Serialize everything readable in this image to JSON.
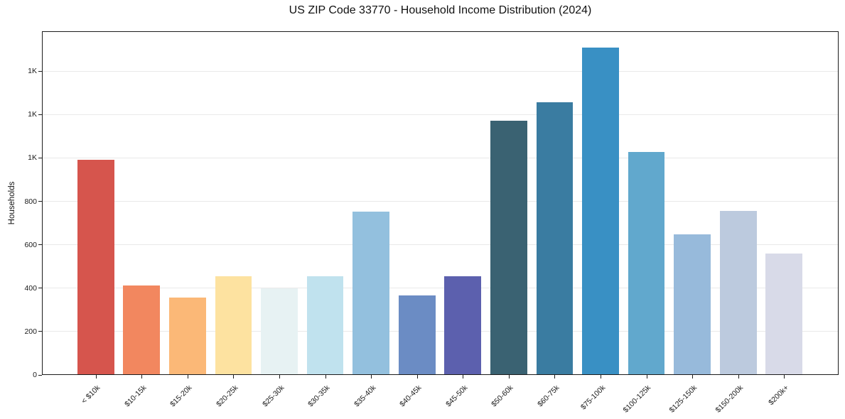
{
  "title": "US ZIP Code 33770 - Household Income Distribution (2024)",
  "chart_data": {
    "type": "bar",
    "title": "US ZIP Code 33770 - Household Income Distribution (2024)",
    "xlabel": "",
    "ylabel": "Households",
    "categories": [
      "< $10k",
      "$10-15k",
      "$15-20k",
      "$20-25k",
      "$25-30k",
      "$30-35k",
      "$35-40k",
      "$40-45k",
      "$45-50k",
      "$50-60k",
      "$60-75k",
      "$75-100k",
      "$100-125k",
      "$125-150k",
      "$150-200k",
      "$200k+"
    ],
    "values": [
      990,
      410,
      353,
      453,
      395,
      452,
      750,
      362,
      452,
      1168,
      1252,
      1507,
      1026,
      646,
      753,
      555
    ],
    "bar_colors": [
      "#d6554d",
      "#f2875f",
      "#fbb877",
      "#fde2a0",
      "#e7f2f3",
      "#c0e2ee",
      "#93c0de",
      "#6b8cc4",
      "#5c60ae",
      "#3a6272",
      "#3a7ca1",
      "#3990c4",
      "#61a8cd",
      "#97badb",
      "#bccade",
      "#d8dae8"
    ],
    "yticks": {
      "values": [
        0,
        200,
        400,
        600,
        800,
        1000,
        1200,
        1400
      ],
      "labels": [
        "0",
        "200",
        "400",
        "600",
        "800",
        "1K",
        "1K",
        "1K"
      ]
    },
    "ylim": [
      0,
      1584
    ],
    "xlim": [
      -1.18,
      16.18
    ],
    "bar_width_fraction": 0.8,
    "grid": "horizontal",
    "legend": "none",
    "background_color": "#ffffff",
    "gridline_color": "#e9e9e9",
    "spine_color": "#1c1c1c",
    "text_color": "#111111"
  }
}
